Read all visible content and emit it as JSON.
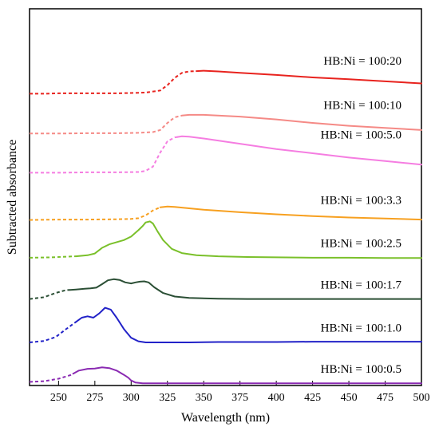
{
  "chart_data": {
    "type": "line",
    "xlabel": "Wavelength (nm)",
    "ylabel": "Subtracted absorbance",
    "xlim": [
      230,
      500
    ],
    "ylim": [
      0,
      1
    ],
    "xticks": [
      250,
      275,
      300,
      325,
      350,
      375,
      400,
      425,
      450,
      475,
      500
    ],
    "grid": false,
    "legend": "inline labels at right",
    "series": [
      {
        "name": "HB:Ni = 100:20",
        "color": "#e8231e",
        "dashed_until": 345,
        "points": [
          [
            230,
            0.825
          ],
          [
            240,
            0.825
          ],
          [
            250,
            0.826
          ],
          [
            260,
            0.826
          ],
          [
            270,
            0.826
          ],
          [
            280,
            0.826
          ],
          [
            290,
            0.826
          ],
          [
            300,
            0.827
          ],
          [
            310,
            0.828
          ],
          [
            320,
            0.834
          ],
          [
            325,
            0.849
          ],
          [
            330,
            0.87
          ],
          [
            335,
            0.884
          ],
          [
            340,
            0.888
          ],
          [
            345,
            0.889
          ],
          [
            350,
            0.89
          ],
          [
            360,
            0.888
          ],
          [
            375,
            0.884
          ],
          [
            400,
            0.878
          ],
          [
            425,
            0.871
          ],
          [
            450,
            0.866
          ],
          [
            475,
            0.86
          ],
          [
            500,
            0.854
          ]
        ]
      },
      {
        "name": "HB:Ni = 100:10",
        "color": "#f58a86",
        "dashed_until": 335,
        "points": [
          [
            230,
            0.712
          ],
          [
            250,
            0.712
          ],
          [
            270,
            0.713
          ],
          [
            290,
            0.713
          ],
          [
            305,
            0.714
          ],
          [
            315,
            0.716
          ],
          [
            320,
            0.722
          ],
          [
            325,
            0.742
          ],
          [
            330,
            0.758
          ],
          [
            335,
            0.763
          ],
          [
            340,
            0.765
          ],
          [
            350,
            0.765
          ],
          [
            375,
            0.76
          ],
          [
            400,
            0.752
          ],
          [
            425,
            0.742
          ],
          [
            450,
            0.734
          ],
          [
            475,
            0.728
          ],
          [
            500,
            0.722
          ]
        ]
      },
      {
        "name": "HB:Ni = 100:5.0",
        "color": "#f57de1",
        "dashed_until": 332,
        "points": [
          [
            230,
            0.601
          ],
          [
            250,
            0.601
          ],
          [
            270,
            0.602
          ],
          [
            290,
            0.602
          ],
          [
            305,
            0.603
          ],
          [
            310,
            0.606
          ],
          [
            315,
            0.618
          ],
          [
            320,
            0.658
          ],
          [
            325,
            0.69
          ],
          [
            330,
            0.701
          ],
          [
            335,
            0.704
          ],
          [
            340,
            0.703
          ],
          [
            350,
            0.698
          ],
          [
            375,
            0.683
          ],
          [
            400,
            0.668
          ],
          [
            425,
            0.656
          ],
          [
            450,
            0.644
          ],
          [
            475,
            0.634
          ],
          [
            500,
            0.624
          ]
        ]
      },
      {
        "name": "HB:Ni = 100:3.3",
        "color": "#f7a020",
        "dashed_until": 320,
        "points": [
          [
            230,
            0.467
          ],
          [
            250,
            0.468
          ],
          [
            270,
            0.468
          ],
          [
            290,
            0.469
          ],
          [
            300,
            0.47
          ],
          [
            305,
            0.472
          ],
          [
            310,
            0.48
          ],
          [
            315,
            0.494
          ],
          [
            320,
            0.503
          ],
          [
            325,
            0.505
          ],
          [
            330,
            0.504
          ],
          [
            340,
            0.5
          ],
          [
            350,
            0.496
          ],
          [
            375,
            0.489
          ],
          [
            400,
            0.483
          ],
          [
            425,
            0.478
          ],
          [
            450,
            0.474
          ],
          [
            475,
            0.471
          ],
          [
            500,
            0.468
          ]
        ]
      },
      {
        "name": "HB:Ni = 100:2.5",
        "color": "#7ac02a",
        "dashed_until": 262,
        "points": [
          [
            230,
            0.36
          ],
          [
            245,
            0.361
          ],
          [
            255,
            0.363
          ],
          [
            262,
            0.364
          ],
          [
            270,
            0.367
          ],
          [
            275,
            0.372
          ],
          [
            280,
            0.388
          ],
          [
            285,
            0.398
          ],
          [
            290,
            0.404
          ],
          [
            295,
            0.41
          ],
          [
            300,
            0.42
          ],
          [
            305,
            0.438
          ],
          [
            308,
            0.45
          ],
          [
            310,
            0.46
          ],
          [
            313,
            0.463
          ],
          [
            315,
            0.457
          ],
          [
            318,
            0.436
          ],
          [
            322,
            0.41
          ],
          [
            328,
            0.385
          ],
          [
            335,
            0.373
          ],
          [
            345,
            0.367
          ],
          [
            360,
            0.364
          ],
          [
            380,
            0.362
          ],
          [
            400,
            0.361
          ],
          [
            425,
            0.36
          ],
          [
            450,
            0.36
          ],
          [
            475,
            0.359
          ],
          [
            500,
            0.359
          ]
        ]
      },
      {
        "name": "HB:Ni = 100:1.7",
        "color": "#2b4f35",
        "dashed_until": 258,
        "points": [
          [
            230,
            0.243
          ],
          [
            240,
            0.248
          ],
          [
            248,
            0.26
          ],
          [
            255,
            0.268
          ],
          [
            262,
            0.27
          ],
          [
            268,
            0.272
          ],
          [
            272,
            0.273
          ],
          [
            276,
            0.275
          ],
          [
            280,
            0.285
          ],
          [
            284,
            0.296
          ],
          [
            288,
            0.299
          ],
          [
            292,
            0.297
          ],
          [
            296,
            0.29
          ],
          [
            300,
            0.287
          ],
          [
            303,
            0.29
          ],
          [
            306,
            0.292
          ],
          [
            309,
            0.293
          ],
          [
            312,
            0.29
          ],
          [
            316,
            0.276
          ],
          [
            322,
            0.26
          ],
          [
            330,
            0.25
          ],
          [
            340,
            0.246
          ],
          [
            360,
            0.244
          ],
          [
            380,
            0.243
          ],
          [
            400,
            0.243
          ],
          [
            425,
            0.243
          ],
          [
            450,
            0.243
          ],
          [
            475,
            0.243
          ],
          [
            500,
            0.243
          ]
        ]
      },
      {
        "name": "HB:Ni = 100:1.0",
        "color": "#2222c8",
        "dashed_until": 262,
        "points": [
          [
            230,
            0.12
          ],
          [
            240,
            0.124
          ],
          [
            248,
            0.135
          ],
          [
            255,
            0.157
          ],
          [
            262,
            0.178
          ],
          [
            266,
            0.19
          ],
          [
            270,
            0.194
          ],
          [
            274,
            0.19
          ],
          [
            278,
            0.202
          ],
          [
            282,
            0.218
          ],
          [
            286,
            0.213
          ],
          [
            290,
            0.19
          ],
          [
            295,
            0.158
          ],
          [
            300,
            0.133
          ],
          [
            305,
            0.123
          ],
          [
            310,
            0.12
          ],
          [
            320,
            0.12
          ],
          [
            340,
            0.12
          ],
          [
            360,
            0.121
          ],
          [
            380,
            0.121
          ],
          [
            400,
            0.121
          ],
          [
            425,
            0.122
          ],
          [
            450,
            0.122
          ],
          [
            475,
            0.122
          ],
          [
            500,
            0.122
          ]
        ]
      },
      {
        "name": "HB:Ni = 100:0.5",
        "color": "#8a2ab2",
        "dashed_until": 260,
        "points": [
          [
            230,
            0.008
          ],
          [
            240,
            0.01
          ],
          [
            250,
            0.017
          ],
          [
            258,
            0.027
          ],
          [
            264,
            0.04
          ],
          [
            270,
            0.045
          ],
          [
            275,
            0.046
          ],
          [
            280,
            0.049
          ],
          [
            285,
            0.047
          ],
          [
            290,
            0.04
          ],
          [
            295,
            0.028
          ],
          [
            298,
            0.02
          ],
          [
            300,
            0.012
          ],
          [
            303,
            0.006
          ],
          [
            308,
            0.004
          ],
          [
            320,
            0.004
          ],
          [
            340,
            0.004
          ],
          [
            360,
            0.004
          ],
          [
            380,
            0.004
          ],
          [
            400,
            0.004
          ],
          [
            425,
            0.004
          ],
          [
            450,
            0.004
          ],
          [
            475,
            0.004
          ],
          [
            500,
            0.004
          ]
        ]
      }
    ]
  }
}
